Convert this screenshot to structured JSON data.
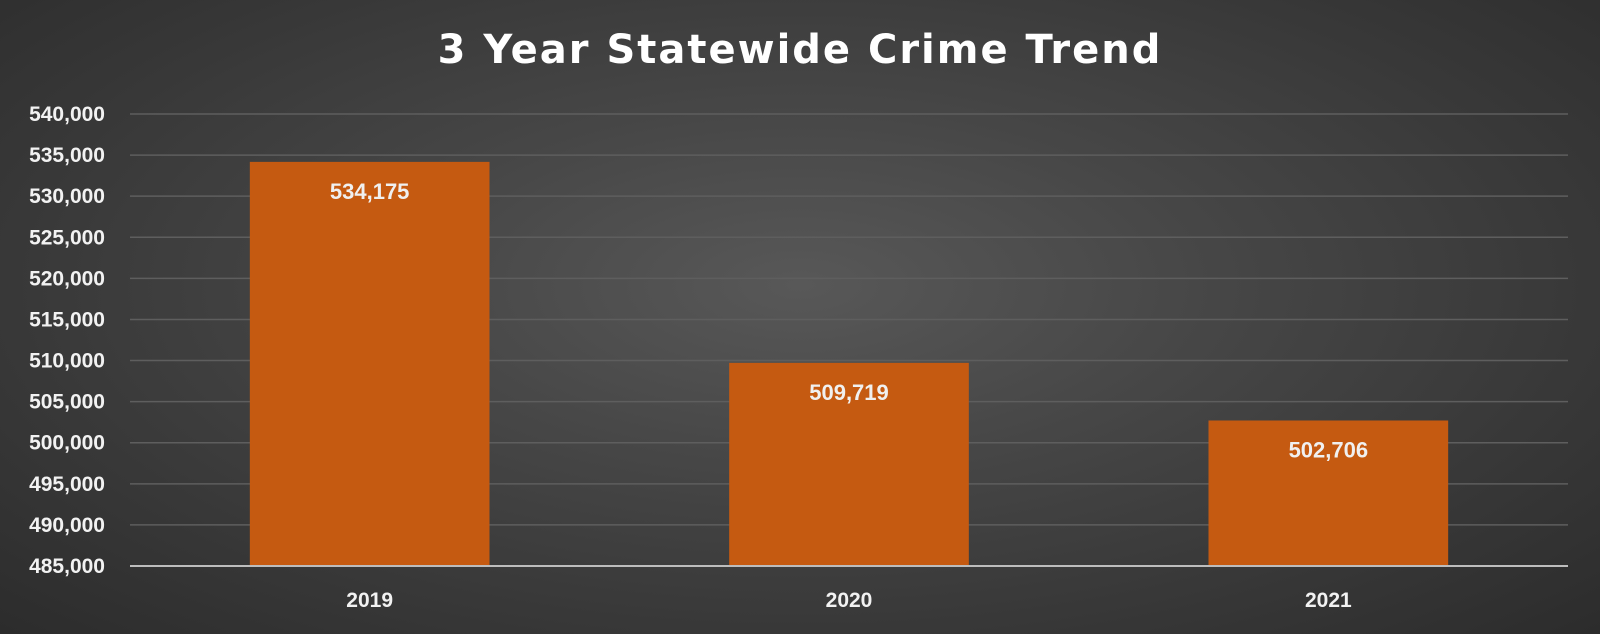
{
  "chart_data": {
    "type": "bar",
    "title": "3 Year Statewide Crime Trend",
    "categories": [
      "2019",
      "2020",
      "2021"
    ],
    "values": [
      534175,
      509719,
      502706
    ],
    "data_labels": [
      "534,175",
      "509,719",
      "502,706"
    ],
    "xlabel": "",
    "ylabel": "",
    "ylim": [
      485000,
      540000
    ],
    "y_ticks": [
      485000,
      490000,
      495000,
      500000,
      505000,
      510000,
      515000,
      520000,
      525000,
      530000,
      535000,
      540000
    ],
    "y_tick_labels": [
      "485,000",
      "490,000",
      "495,000",
      "500,000",
      "505,000",
      "510,000",
      "515,000",
      "520,000",
      "525,000",
      "530,000",
      "535,000",
      "540,000"
    ],
    "grid": true,
    "legend": "none",
    "colors": {
      "bar": "#c55a11",
      "background": "#404040",
      "text": "#ffffff"
    }
  }
}
